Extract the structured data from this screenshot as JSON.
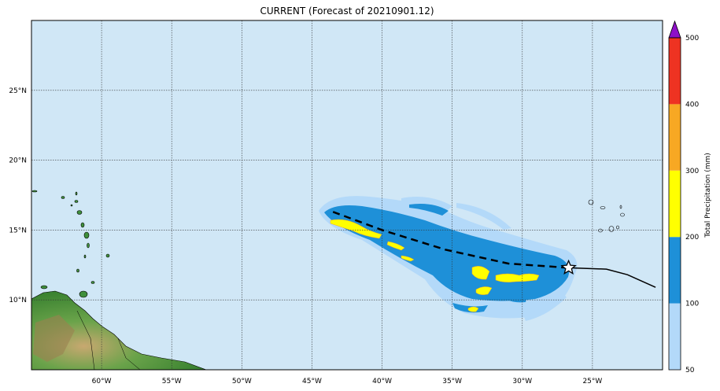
{
  "title": "CURRENT (Forecast of 20210901.12)",
  "map": {
    "lon_range": [
      -65,
      -20
    ],
    "lat_range": [
      5,
      30
    ],
    "lon_ticks": [
      "60°W",
      "55°W",
      "50°W",
      "45°W",
      "40°W",
      "35°W",
      "30°W",
      "25°W"
    ],
    "lat_ticks": [
      "25°N",
      "20°N",
      "15°N",
      "10°N"
    ],
    "ocean_color": "#d0e7f6",
    "grid": true
  },
  "colorbar": {
    "label": "Total Precipitation (mm)",
    "ticks": [
      "500",
      "400",
      "300",
      "200",
      "100",
      "50"
    ],
    "levels": [
      {
        "min": 50,
        "max": 100,
        "color": "#b3d9f9"
      },
      {
        "min": 100,
        "max": 200,
        "color": "#1e90d8"
      },
      {
        "min": 200,
        "max": 300,
        "color": "#ffff00"
      },
      {
        "min": 300,
        "max": 400,
        "color": "#f7a823"
      },
      {
        "min": 400,
        "max": 500,
        "color": "#ee3322"
      }
    ],
    "extend_color": "#8e10c8"
  },
  "track": {
    "forecast": [
      [
        -43.5,
        16.3
      ],
      [
        -40,
        15.0
      ],
      [
        -35.5,
        13.6
      ],
      [
        -31,
        12.6
      ],
      [
        -26.7,
        12.3
      ]
    ],
    "observed": [
      [
        -26.7,
        12.3
      ],
      [
        -24,
        12.2
      ],
      [
        -22.5,
        11.8
      ],
      [
        -20.5,
        10.9
      ]
    ],
    "current_position": [
      -26.7,
      12.3
    ]
  }
}
